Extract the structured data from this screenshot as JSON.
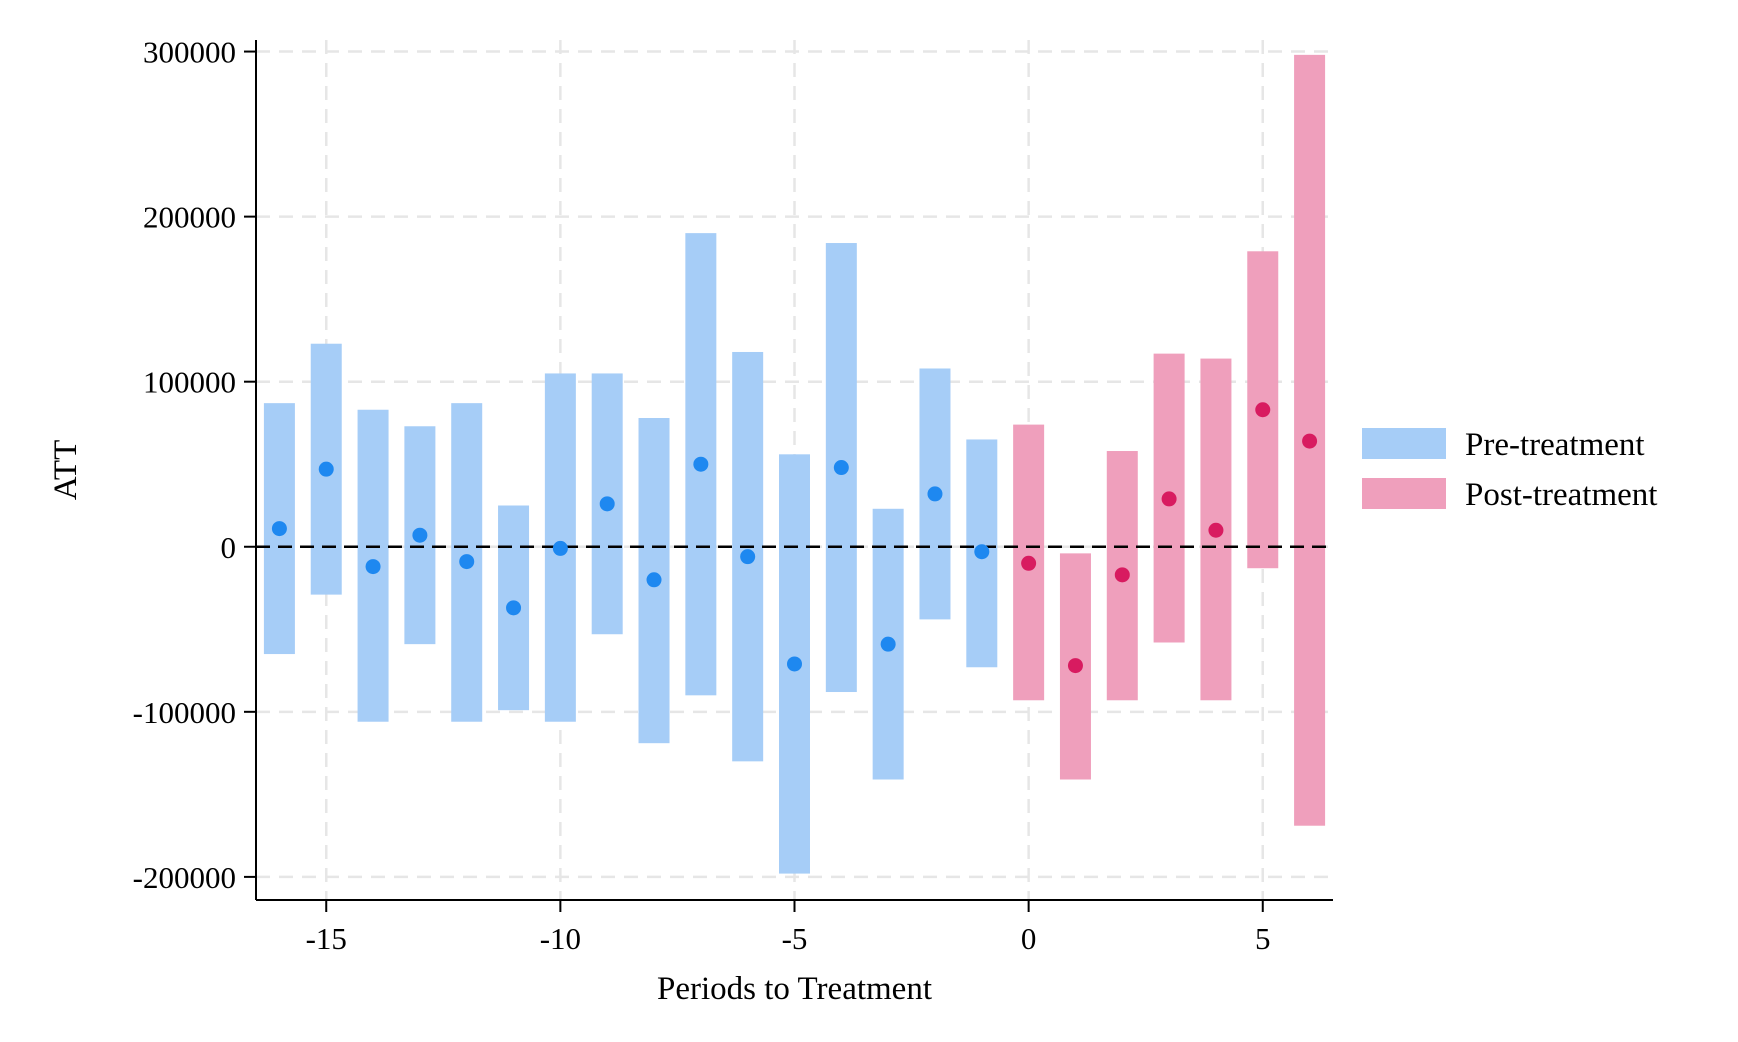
{
  "chart_data": {
    "type": "event-study",
    "xlabel": "Periods to Treatment",
    "ylabel": "ATT",
    "xlim": [
      -16.5,
      6.5
    ],
    "ylim": [
      -214000,
      307000
    ],
    "xticks": [
      -15,
      -10,
      -5,
      0,
      5
    ],
    "xtick_labels": [
      "-15",
      "-10",
      "-5",
      "0",
      "5"
    ],
    "yticks": [
      -200000,
      -100000,
      0,
      100000,
      200000,
      300000
    ],
    "ytick_labels": [
      "-200000",
      "-100000",
      "0",
      "100000",
      "200000",
      "300000"
    ],
    "grid": true,
    "zero_line": "dashed",
    "legend": {
      "placement": "right",
      "entries": [
        "Pre-treatment",
        "Post-treatment"
      ]
    },
    "colors": {
      "pre_ci": "#a6cdf7",
      "pre_point": "#1e88f0",
      "post_ci": "#ef9fbc",
      "post_point": "#d81b60",
      "grid": "#e6e6e6",
      "axis": "#000000"
    },
    "series": [
      {
        "name": "Pre-treatment",
        "x": [
          -16,
          -15,
          -14,
          -13,
          -12,
          -11,
          -10,
          -9,
          -8,
          -7,
          -6,
          -5,
          -4,
          -3,
          -2,
          -1
        ],
        "estimate": [
          11000,
          47000,
          -12000,
          7000,
          -9000,
          -37000,
          -1000,
          26000,
          -20000,
          50000,
          -6000,
          -71000,
          48000,
          -59000,
          32000,
          -3000
        ],
        "ci_lower": [
          -65000,
          -29000,
          -106000,
          -59000,
          -106000,
          -99000,
          -106000,
          -53000,
          -119000,
          -90000,
          -130000,
          -198000,
          -88000,
          -141000,
          -44000,
          -73000
        ],
        "ci_upper": [
          87000,
          123000,
          83000,
          73000,
          87000,
          25000,
          105000,
          105000,
          78000,
          190000,
          118000,
          56000,
          184000,
          23000,
          108000,
          65000
        ]
      },
      {
        "name": "Post-treatment",
        "x": [
          0,
          1,
          2,
          3,
          4,
          5,
          6
        ],
        "estimate": [
          -10000,
          -72000,
          -17000,
          29000,
          10000,
          83000,
          64000
        ],
        "ci_lower": [
          -93000,
          -141000,
          -93000,
          -58000,
          -93000,
          -13000,
          -169000
        ],
        "ci_upper": [
          74000,
          -4000,
          58000,
          117000,
          114000,
          179000,
          298000
        ]
      }
    ]
  }
}
